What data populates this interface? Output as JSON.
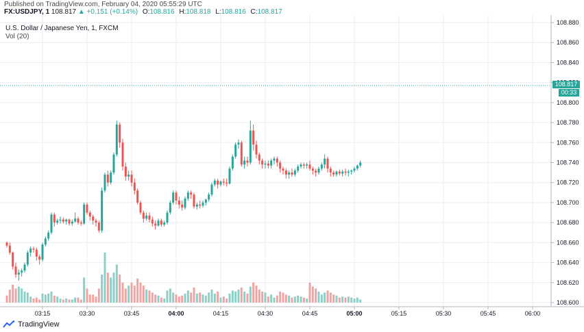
{
  "header": {
    "published": "Published on TradingView.com, February 04, 2020 05:55:29 UTC",
    "symbol": "FX:USDJPY, 1",
    "last": "108.817",
    "change": "+0.151 (+0.14%)",
    "o_label": "O:",
    "o_value": "108.816",
    "h_label": "H:",
    "h_value": "108.818",
    "l_label": "L:",
    "l_value": "108.816",
    "c_label": "C:",
    "c_value": "108.817"
  },
  "legend": {
    "instrument": "U.S. Dollar / Japanese Yen, 1, FXCM",
    "volume": "Vol (20)"
  },
  "price_tag": {
    "price": "108.817",
    "countdown": "00:33"
  },
  "brand": "TradingView",
  "colors": {
    "up": "#26a69a",
    "down": "#ef5350",
    "vol_up": "#8ccfc7",
    "vol_down": "#f2a3a1",
    "grid": "#eceef2"
  },
  "chart_data": {
    "type": "candlestick",
    "y_ticks": [
      "108.880",
      "108.860",
      "108.840",
      "108.820",
      "108.800",
      "108.780",
      "108.760",
      "108.740",
      "108.720",
      "108.700",
      "108.680",
      "108.660",
      "108.640",
      "108.620",
      "108.600"
    ],
    "ylim": [
      108.6,
      108.88
    ],
    "x_ticks": [
      "03:15",
      "03:30",
      "03:45",
      "04:00",
      "04:15",
      "04:30",
      "04:45",
      "05:00",
      "05:15",
      "05:30",
      "05:45",
      "06:00"
    ],
    "x_tick_minutes": [
      195,
      210,
      225,
      240,
      255,
      270,
      285,
      300,
      315,
      330,
      345,
      360
    ],
    "x_bold": [
      "04:00",
      "05:00"
    ],
    "volume_baseline": 108.6,
    "last_price": 108.817,
    "candles": [
      {
        "t": 183,
        "o": 108.66,
        "h": 108.661,
        "l": 108.655,
        "c": 108.657,
        "v": 108.607
      },
      {
        "t": 184,
        "o": 108.657,
        "h": 108.66,
        "l": 108.648,
        "c": 108.65,
        "v": 108.613
      },
      {
        "t": 185,
        "o": 108.65,
        "h": 108.651,
        "l": 108.633,
        "c": 108.636,
        "v": 108.618
      },
      {
        "t": 186,
        "o": 108.636,
        "h": 108.64,
        "l": 108.625,
        "c": 108.628,
        "v": 108.614
      },
      {
        "t": 187,
        "o": 108.628,
        "h": 108.633,
        "l": 108.622,
        "c": 108.63,
        "v": 108.616
      },
      {
        "t": 188,
        "o": 108.63,
        "h": 108.634,
        "l": 108.626,
        "c": 108.632,
        "v": 108.614
      },
      {
        "t": 189,
        "o": 108.632,
        "h": 108.64,
        "l": 108.63,
        "c": 108.638,
        "v": 108.611
      },
      {
        "t": 190,
        "o": 108.638,
        "h": 108.652,
        "l": 108.636,
        "c": 108.65,
        "v": 108.61
      },
      {
        "t": 191,
        "o": 108.65,
        "h": 108.656,
        "l": 108.646,
        "c": 108.654,
        "v": 108.606
      },
      {
        "t": 192,
        "o": 108.654,
        "h": 108.656,
        "l": 108.65,
        "c": 108.653,
        "v": 108.604
      },
      {
        "t": 193,
        "o": 108.653,
        "h": 108.655,
        "l": 108.642,
        "c": 108.646,
        "v": 108.605
      },
      {
        "t": 194,
        "o": 108.646,
        "h": 108.648,
        "l": 108.638,
        "c": 108.643,
        "v": 108.603
      },
      {
        "t": 195,
        "o": 108.643,
        "h": 108.66,
        "l": 108.641,
        "c": 108.658,
        "v": 108.609
      },
      {
        "t": 196,
        "o": 108.658,
        "h": 108.666,
        "l": 108.656,
        "c": 108.664,
        "v": 108.608
      },
      {
        "t": 197,
        "o": 108.664,
        "h": 108.672,
        "l": 108.662,
        "c": 108.67,
        "v": 108.609
      },
      {
        "t": 198,
        "o": 108.67,
        "h": 108.69,
        "l": 108.668,
        "c": 108.688,
        "v": 108.611
      },
      {
        "t": 199,
        "o": 108.688,
        "h": 108.69,
        "l": 108.676,
        "c": 108.68,
        "v": 108.607
      },
      {
        "t": 200,
        "o": 108.68,
        "h": 108.684,
        "l": 108.678,
        "c": 108.682,
        "v": 108.606
      },
      {
        "t": 201,
        "o": 108.682,
        "h": 108.686,
        "l": 108.679,
        "c": 108.683,
        "v": 108.604
      },
      {
        "t": 202,
        "o": 108.683,
        "h": 108.685,
        "l": 108.679,
        "c": 108.681,
        "v": 108.603
      },
      {
        "t": 203,
        "o": 108.681,
        "h": 108.684,
        "l": 108.678,
        "c": 108.683,
        "v": 108.604
      },
      {
        "t": 204,
        "o": 108.683,
        "h": 108.684,
        "l": 108.677,
        "c": 108.679,
        "v": 108.603
      },
      {
        "t": 205,
        "o": 108.679,
        "h": 108.683,
        "l": 108.677,
        "c": 108.681,
        "v": 108.603
      },
      {
        "t": 206,
        "o": 108.681,
        "h": 108.69,
        "l": 108.68,
        "c": 108.684,
        "v": 108.605
      },
      {
        "t": 207,
        "o": 108.684,
        "h": 108.686,
        "l": 108.678,
        "c": 108.68,
        "v": 108.605
      },
      {
        "t": 208,
        "o": 108.68,
        "h": 108.682,
        "l": 108.677,
        "c": 108.679,
        "v": 108.603
      },
      {
        "t": 209,
        "o": 108.679,
        "h": 108.7,
        "l": 108.678,
        "c": 108.698,
        "v": 108.625
      },
      {
        "t": 210,
        "o": 108.698,
        "h": 108.7,
        "l": 108.688,
        "c": 108.69,
        "v": 108.614
      },
      {
        "t": 211,
        "o": 108.69,
        "h": 108.692,
        "l": 108.682,
        "c": 108.686,
        "v": 108.608
      },
      {
        "t": 212,
        "o": 108.686,
        "h": 108.688,
        "l": 108.678,
        "c": 108.682,
        "v": 108.608
      },
      {
        "t": 213,
        "o": 108.682,
        "h": 108.684,
        "l": 108.676,
        "c": 108.68,
        "v": 108.606
      },
      {
        "t": 214,
        "o": 108.68,
        "h": 108.682,
        "l": 108.67,
        "c": 108.672,
        "v": 108.614
      },
      {
        "t": 215,
        "o": 108.672,
        "h": 108.715,
        "l": 108.67,
        "c": 108.712,
        "v": 108.628
      },
      {
        "t": 216,
        "o": 108.712,
        "h": 108.73,
        "l": 108.71,
        "c": 108.728,
        "v": 108.65
      },
      {
        "t": 217,
        "o": 108.728,
        "h": 108.732,
        "l": 108.716,
        "c": 108.72,
        "v": 108.63
      },
      {
        "t": 218,
        "o": 108.72,
        "h": 108.732,
        "l": 108.718,
        "c": 108.73,
        "v": 108.625
      },
      {
        "t": 219,
        "o": 108.73,
        "h": 108.75,
        "l": 108.728,
        "c": 108.748,
        "v": 108.63
      },
      {
        "t": 220,
        "o": 108.748,
        "h": 108.782,
        "l": 108.746,
        "c": 108.778,
        "v": 108.638
      },
      {
        "t": 221,
        "o": 108.778,
        "h": 108.78,
        "l": 108.755,
        "c": 108.76,
        "v": 108.628
      },
      {
        "t": 222,
        "o": 108.76,
        "h": 108.764,
        "l": 108.732,
        "c": 108.736,
        "v": 108.62
      },
      {
        "t": 223,
        "o": 108.736,
        "h": 108.74,
        "l": 108.722,
        "c": 108.726,
        "v": 108.614
      },
      {
        "t": 224,
        "o": 108.726,
        "h": 108.732,
        "l": 108.722,
        "c": 108.728,
        "v": 108.617
      },
      {
        "t": 225,
        "o": 108.728,
        "h": 108.732,
        "l": 108.716,
        "c": 108.72,
        "v": 108.62
      },
      {
        "t": 226,
        "o": 108.72,
        "h": 108.724,
        "l": 108.708,
        "c": 108.712,
        "v": 108.617
      },
      {
        "t": 227,
        "o": 108.712,
        "h": 108.714,
        "l": 108.698,
        "c": 108.7,
        "v": 108.624
      },
      {
        "t": 228,
        "o": 108.7,
        "h": 108.702,
        "l": 108.688,
        "c": 108.69,
        "v": 108.62
      },
      {
        "t": 229,
        "o": 108.69,
        "h": 108.692,
        "l": 108.68,
        "c": 108.684,
        "v": 108.617
      },
      {
        "t": 230,
        "o": 108.684,
        "h": 108.69,
        "l": 108.682,
        "c": 108.687,
        "v": 108.613
      },
      {
        "t": 231,
        "o": 108.687,
        "h": 108.69,
        "l": 108.68,
        "c": 108.683,
        "v": 108.612
      },
      {
        "t": 232,
        "o": 108.683,
        "h": 108.686,
        "l": 108.676,
        "c": 108.679,
        "v": 108.61
      },
      {
        "t": 233,
        "o": 108.679,
        "h": 108.682,
        "l": 108.673,
        "c": 108.677,
        "v": 108.608
      },
      {
        "t": 234,
        "o": 108.677,
        "h": 108.684,
        "l": 108.676,
        "c": 108.682,
        "v": 108.607
      },
      {
        "t": 235,
        "o": 108.682,
        "h": 108.684,
        "l": 108.676,
        "c": 108.678,
        "v": 108.605
      },
      {
        "t": 236,
        "o": 108.678,
        "h": 108.682,
        "l": 108.676,
        "c": 108.68,
        "v": 108.604
      },
      {
        "t": 237,
        "o": 108.68,
        "h": 108.692,
        "l": 108.678,
        "c": 108.69,
        "v": 108.612
      },
      {
        "t": 238,
        "o": 108.69,
        "h": 108.702,
        "l": 108.688,
        "c": 108.7,
        "v": 108.614
      },
      {
        "t": 239,
        "o": 108.7,
        "h": 108.712,
        "l": 108.698,
        "c": 108.71,
        "v": 108.61
      },
      {
        "t": 240,
        "o": 108.71,
        "h": 108.712,
        "l": 108.698,
        "c": 108.702,
        "v": 108.608
      },
      {
        "t": 241,
        "o": 108.702,
        "h": 108.706,
        "l": 108.694,
        "c": 108.698,
        "v": 108.606
      },
      {
        "t": 242,
        "o": 108.698,
        "h": 108.702,
        "l": 108.692,
        "c": 108.695,
        "v": 108.607
      },
      {
        "t": 243,
        "o": 108.695,
        "h": 108.706,
        "l": 108.693,
        "c": 108.704,
        "v": 108.609
      },
      {
        "t": 244,
        "o": 108.704,
        "h": 108.712,
        "l": 108.702,
        "c": 108.71,
        "v": 108.612
      },
      {
        "t": 245,
        "o": 108.71,
        "h": 108.712,
        "l": 108.704,
        "c": 108.708,
        "v": 108.61
      },
      {
        "t": 246,
        "o": 108.708,
        "h": 108.71,
        "l": 108.694,
        "c": 108.696,
        "v": 108.615
      },
      {
        "t": 247,
        "o": 108.696,
        "h": 108.7,
        "l": 108.693,
        "c": 108.698,
        "v": 108.609
      },
      {
        "t": 248,
        "o": 108.698,
        "h": 108.702,
        "l": 108.694,
        "c": 108.697,
        "v": 108.61
      },
      {
        "t": 249,
        "o": 108.697,
        "h": 108.702,
        "l": 108.695,
        "c": 108.7,
        "v": 108.608
      },
      {
        "t": 250,
        "o": 108.7,
        "h": 108.704,
        "l": 108.697,
        "c": 108.703,
        "v": 108.607
      },
      {
        "t": 251,
        "o": 108.703,
        "h": 108.71,
        "l": 108.701,
        "c": 108.708,
        "v": 108.61
      },
      {
        "t": 252,
        "o": 108.708,
        "h": 108.72,
        "l": 108.706,
        "c": 108.718,
        "v": 108.613
      },
      {
        "t": 253,
        "o": 108.718,
        "h": 108.724,
        "l": 108.716,
        "c": 108.722,
        "v": 108.609
      },
      {
        "t": 254,
        "o": 108.722,
        "h": 108.724,
        "l": 108.714,
        "c": 108.718,
        "v": 108.611
      },
      {
        "t": 255,
        "o": 108.718,
        "h": 108.722,
        "l": 108.716,
        "c": 108.721,
        "v": 108.605
      },
      {
        "t": 256,
        "o": 108.721,
        "h": 108.724,
        "l": 108.717,
        "c": 108.72,
        "v": 108.606
      },
      {
        "t": 257,
        "o": 108.72,
        "h": 108.724,
        "l": 108.716,
        "c": 108.719,
        "v": 108.604
      },
      {
        "t": 258,
        "o": 108.719,
        "h": 108.736,
        "l": 108.718,
        "c": 108.734,
        "v": 108.609
      },
      {
        "t": 259,
        "o": 108.734,
        "h": 108.748,
        "l": 108.732,
        "c": 108.746,
        "v": 108.612
      },
      {
        "t": 260,
        "o": 108.746,
        "h": 108.76,
        "l": 108.744,
        "c": 108.758,
        "v": 108.611
      },
      {
        "t": 261,
        "o": 108.758,
        "h": 108.763,
        "l": 108.754,
        "c": 108.76,
        "v": 108.613
      },
      {
        "t": 262,
        "o": 108.76,
        "h": 108.762,
        "l": 108.736,
        "c": 108.738,
        "v": 108.615
      },
      {
        "t": 263,
        "o": 108.738,
        "h": 108.746,
        "l": 108.734,
        "c": 108.742,
        "v": 108.611
      },
      {
        "t": 264,
        "o": 108.742,
        "h": 108.746,
        "l": 108.736,
        "c": 108.74,
        "v": 108.609
      },
      {
        "t": 265,
        "o": 108.74,
        "h": 108.782,
        "l": 108.738,
        "c": 108.772,
        "v": 108.616
      },
      {
        "t": 266,
        "o": 108.772,
        "h": 108.778,
        "l": 108.752,
        "c": 108.758,
        "v": 108.62
      },
      {
        "t": 267,
        "o": 108.758,
        "h": 108.762,
        "l": 108.744,
        "c": 108.748,
        "v": 108.617
      },
      {
        "t": 268,
        "o": 108.748,
        "h": 108.75,
        "l": 108.738,
        "c": 108.742,
        "v": 108.613
      },
      {
        "t": 269,
        "o": 108.742,
        "h": 108.744,
        "l": 108.734,
        "c": 108.738,
        "v": 108.611
      },
      {
        "t": 270,
        "o": 108.738,
        "h": 108.742,
        "l": 108.734,
        "c": 108.739,
        "v": 108.61
      },
      {
        "t": 271,
        "o": 108.739,
        "h": 108.742,
        "l": 108.734,
        "c": 108.737,
        "v": 108.606
      },
      {
        "t": 272,
        "o": 108.737,
        "h": 108.744,
        "l": 108.734,
        "c": 108.742,
        "v": 108.608
      },
      {
        "t": 273,
        "o": 108.742,
        "h": 108.746,
        "l": 108.738,
        "c": 108.744,
        "v": 108.605
      },
      {
        "t": 274,
        "o": 108.744,
        "h": 108.746,
        "l": 108.736,
        "c": 108.74,
        "v": 108.607
      },
      {
        "t": 275,
        "o": 108.74,
        "h": 108.742,
        "l": 108.73,
        "c": 108.734,
        "v": 108.611
      },
      {
        "t": 276,
        "o": 108.734,
        "h": 108.736,
        "l": 108.728,
        "c": 108.732,
        "v": 108.61
      },
      {
        "t": 277,
        "o": 108.732,
        "h": 108.734,
        "l": 108.724,
        "c": 108.728,
        "v": 108.608
      },
      {
        "t": 278,
        "o": 108.728,
        "h": 108.732,
        "l": 108.724,
        "c": 108.73,
        "v": 108.607
      },
      {
        "t": 279,
        "o": 108.73,
        "h": 108.734,
        "l": 108.726,
        "c": 108.728,
        "v": 108.605
      },
      {
        "t": 280,
        "o": 108.728,
        "h": 108.734,
        "l": 108.726,
        "c": 108.732,
        "v": 108.606
      },
      {
        "t": 281,
        "o": 108.732,
        "h": 108.738,
        "l": 108.73,
        "c": 108.736,
        "v": 108.607
      },
      {
        "t": 282,
        "o": 108.736,
        "h": 108.74,
        "l": 108.734,
        "c": 108.738,
        "v": 108.606
      },
      {
        "t": 283,
        "o": 108.738,
        "h": 108.74,
        "l": 108.734,
        "c": 108.737,
        "v": 108.605
      },
      {
        "t": 284,
        "o": 108.737,
        "h": 108.74,
        "l": 108.734,
        "c": 108.738,
        "v": 108.604
      },
      {
        "t": 285,
        "o": 108.738,
        "h": 108.742,
        "l": 108.732,
        "c": 108.734,
        "v": 108.62
      },
      {
        "t": 286,
        "o": 108.734,
        "h": 108.736,
        "l": 108.728,
        "c": 108.732,
        "v": 108.616
      },
      {
        "t": 287,
        "o": 108.732,
        "h": 108.734,
        "l": 108.726,
        "c": 108.73,
        "v": 108.614
      },
      {
        "t": 288,
        "o": 108.73,
        "h": 108.736,
        "l": 108.728,
        "c": 108.734,
        "v": 108.611
      },
      {
        "t": 289,
        "o": 108.734,
        "h": 108.74,
        "l": 108.732,
        "c": 108.738,
        "v": 108.608
      },
      {
        "t": 290,
        "o": 108.738,
        "h": 108.748,
        "l": 108.734,
        "c": 108.744,
        "v": 108.61
      },
      {
        "t": 291,
        "o": 108.744,
        "h": 108.746,
        "l": 108.73,
        "c": 108.734,
        "v": 108.612
      },
      {
        "t": 292,
        "o": 108.734,
        "h": 108.736,
        "l": 108.726,
        "c": 108.73,
        "v": 108.61
      },
      {
        "t": 293,
        "o": 108.73,
        "h": 108.732,
        "l": 108.726,
        "c": 108.728,
        "v": 108.608
      },
      {
        "t": 294,
        "o": 108.728,
        "h": 108.732,
        "l": 108.726,
        "c": 108.731,
        "v": 108.607
      },
      {
        "t": 295,
        "o": 108.731,
        "h": 108.733,
        "l": 108.727,
        "c": 108.729,
        "v": 108.605
      },
      {
        "t": 296,
        "o": 108.729,
        "h": 108.733,
        "l": 108.726,
        "c": 108.731,
        "v": 108.606
      },
      {
        "t": 297,
        "o": 108.731,
        "h": 108.734,
        "l": 108.727,
        "c": 108.73,
        "v": 108.605
      },
      {
        "t": 298,
        "o": 108.73,
        "h": 108.733,
        "l": 108.726,
        "c": 108.731,
        "v": 108.606
      },
      {
        "t": 299,
        "o": 108.731,
        "h": 108.733,
        "l": 108.728,
        "c": 108.732,
        "v": 108.605
      },
      {
        "t": 300,
        "o": 108.732,
        "h": 108.736,
        "l": 108.73,
        "c": 108.734,
        "v": 108.604
      },
      {
        "t": 301,
        "o": 108.734,
        "h": 108.738,
        "l": 108.732,
        "c": 108.737,
        "v": 108.605
      },
      {
        "t": 302,
        "o": 108.737,
        "h": 108.742,
        "l": 108.735,
        "c": 108.74,
        "v": 108.603
      }
    ]
  }
}
